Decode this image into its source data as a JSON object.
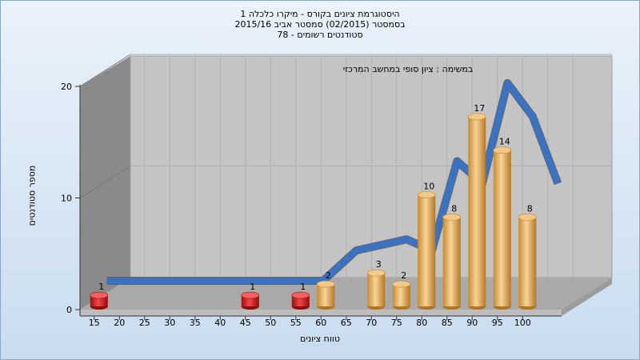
{
  "header": {
    "title_line1": "היסטוגרמת ציונים בקורס - מיקרו כלכלה 1",
    "title_line2": "בסמסטר  (02/2015)  סמסטר אביב 2015/16",
    "title_line3": "סטודנטים רשומים - 78"
  },
  "chart_data": {
    "type": "bar",
    "title": "היסטוגרמת ציונים בקורס - מיקרו כלכלה 1",
    "subtitle": "במשימה : ציון סופי במחשב המרכזי",
    "xlabel": "טווח ציונים",
    "ylabel": "מספר סטודנטים",
    "ylim": [
      0,
      20
    ],
    "y_ticks": [
      0,
      10,
      20
    ],
    "x_ticks": [
      "15",
      "20",
      "25",
      "30",
      "35",
      "40",
      "45",
      "50",
      "55",
      "60",
      "65",
      "70",
      "75",
      "80",
      "85",
      "90",
      "95",
      "100"
    ],
    "categories": [
      "15",
      "45",
      "55",
      "60",
      "70",
      "75",
      "80",
      "85",
      "90",
      "95",
      "100"
    ],
    "values": [
      1,
      1,
      1,
      2,
      3,
      2,
      10,
      8,
      17,
      14,
      8
    ],
    "bar_colors": [
      "#d81c1c",
      "#d81c1c",
      "#d81c1c",
      "#e3a24a",
      "#e3a24a",
      "#e3a24a",
      "#e3a24a",
      "#e3a24a",
      "#e3a24a",
      "#e3a24a",
      "#e3a24a"
    ],
    "grid": true,
    "accent_colors": {
      "pass_bar": "#e3a24a",
      "fail_bar": "#d81c1c",
      "ribbon": "#3a72c4",
      "ribbon_dark": "#5a5a5a"
    }
  }
}
